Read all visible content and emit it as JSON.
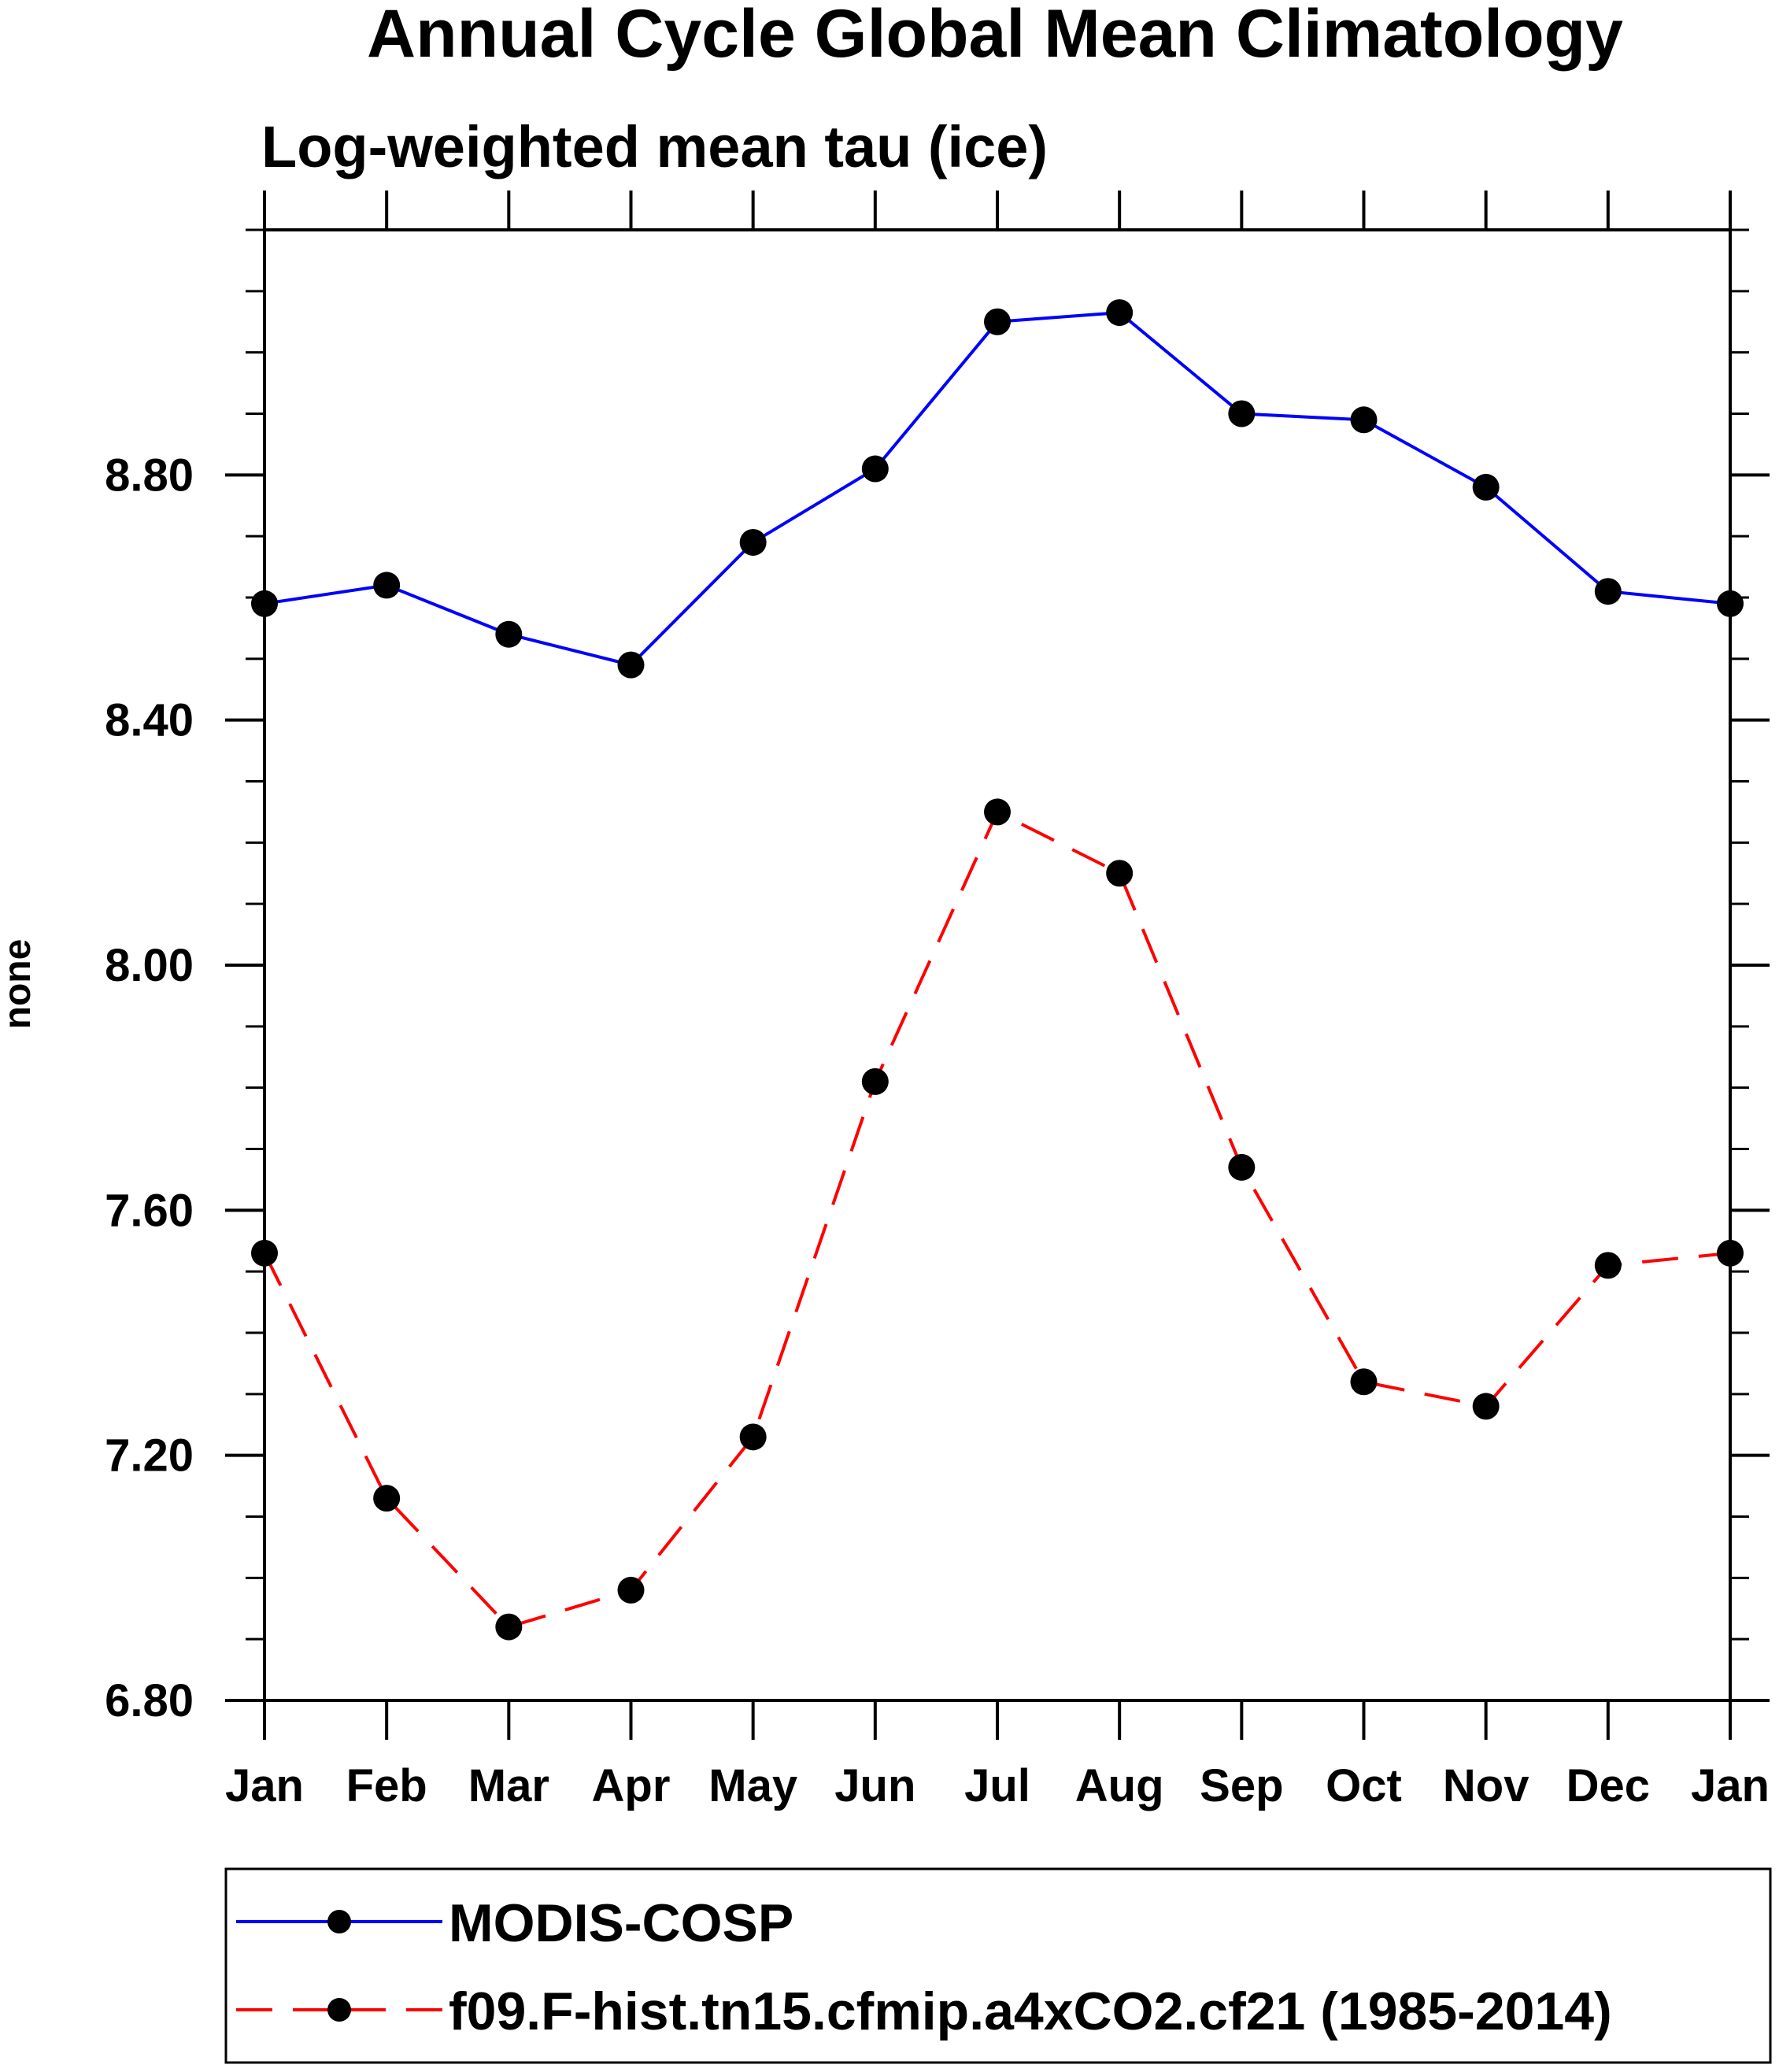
{
  "chart_data": {
    "type": "line",
    "title": "Annual Cycle Global Mean Climatology",
    "subtitle": "Log-weighted mean tau (ice)",
    "xlabel": "",
    "ylabel": "none",
    "categories": [
      "Jan",
      "Feb",
      "Mar",
      "Apr",
      "May",
      "Jun",
      "Jul",
      "Aug",
      "Sep",
      "Oct",
      "Nov",
      "Dec",
      "Jan"
    ],
    "ylim": [
      6.8,
      9.2
    ],
    "y_ticks": [
      6.8,
      7.2,
      7.6,
      8.0,
      8.4,
      8.8
    ],
    "y_tick_labels": [
      "6.80",
      "7.20",
      "7.60",
      "8.00",
      "8.40",
      "8.80"
    ],
    "y_minor_step": 0.1,
    "legend_position": "bottom",
    "series": [
      {
        "name": "MODIS-COSP",
        "color": "#0000ff",
        "dash": "solid",
        "marker": "filled-circle",
        "values": [
          8.59,
          8.62,
          8.54,
          8.49,
          8.69,
          8.81,
          9.05,
          9.065,
          8.9,
          8.89,
          8.78,
          8.61,
          8.59
        ]
      },
      {
        "name": "f09.F-hist.tn15.cfmip.a4xCO2.cf21 (1985-2014)",
        "color": "#ff0000",
        "dash": "dashed",
        "marker": "filled-circle",
        "values": [
          7.53,
          7.13,
          6.92,
          6.98,
          7.23,
          7.81,
          8.25,
          8.15,
          7.67,
          7.32,
          7.28,
          7.51,
          7.53
        ]
      }
    ]
  }
}
